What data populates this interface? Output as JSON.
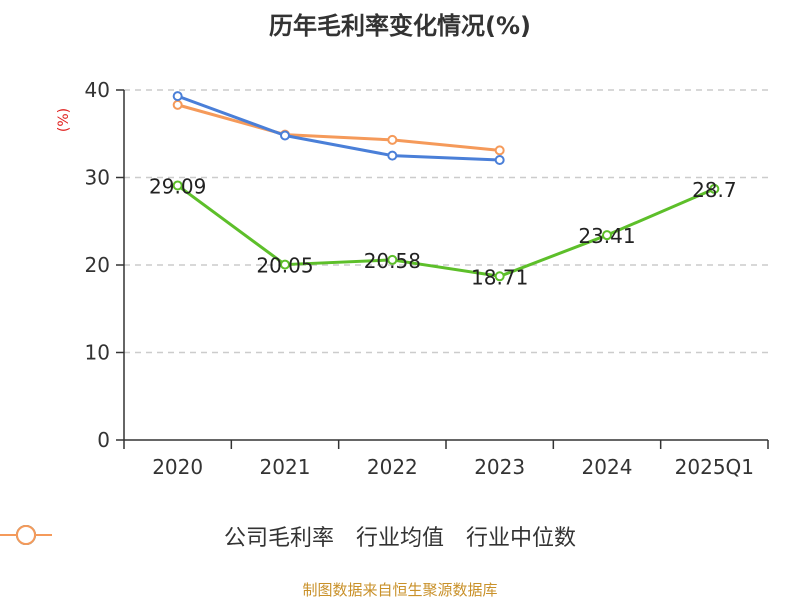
{
  "chart_data": {
    "type": "line",
    "title": "历年毛利率变化情况(%)",
    "ylabel": "(%)",
    "categories": [
      "2020",
      "2021",
      "2022",
      "2023",
      "2024",
      "2025Q1"
    ],
    "ylim": [
      0,
      40
    ],
    "yticks": [
      0,
      10,
      20,
      30,
      40
    ],
    "grid": true,
    "legend_position": "bottom",
    "series": [
      {
        "name": "公司毛利率",
        "color": "#5dbf2a",
        "values": [
          29.09,
          20.05,
          20.58,
          18.71,
          23.41,
          28.7
        ],
        "labels": [
          "29.09",
          "20.05",
          "20.58",
          "18.71",
          "23.41",
          "28.7"
        ]
      },
      {
        "name": "行业均值",
        "color": "#4a7fd8",
        "values": [
          39.3,
          34.8,
          32.5,
          32.0,
          null,
          null
        ]
      },
      {
        "name": "行业中位数",
        "color": "#f59a5a",
        "values": [
          38.3,
          34.9,
          34.3,
          33.1,
          null,
          null
        ]
      }
    ],
    "source": "制图数据来自恒生聚源数据库"
  }
}
